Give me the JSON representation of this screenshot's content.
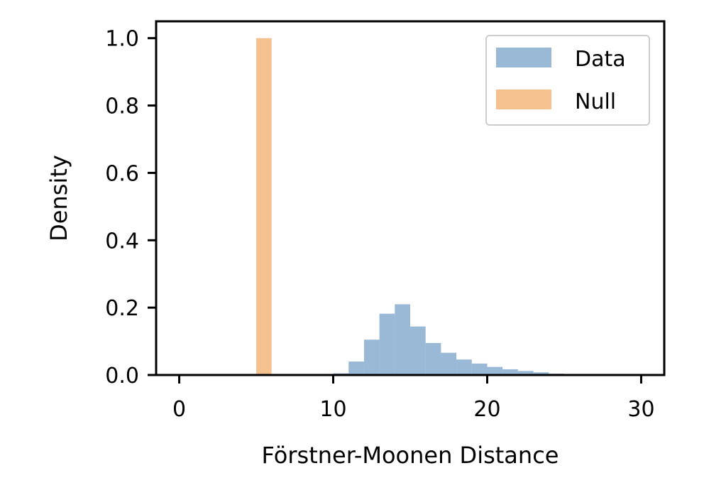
{
  "chart_data": {
    "type": "bar",
    "title": "",
    "xlabel": "Förstner-Moonen Distance",
    "ylabel": "Density",
    "xlim": [
      -1.5,
      31.5
    ],
    "ylim": [
      0,
      1.05
    ],
    "x_ticks": [
      0,
      10,
      20,
      30
    ],
    "y_ticks": [
      0.0,
      0.2,
      0.4,
      0.6,
      0.8,
      1.0
    ],
    "x_tick_labels": [
      "0",
      "10",
      "20",
      "30"
    ],
    "y_tick_labels": [
      "0.0",
      "0.2",
      "0.4",
      "0.6",
      "0.8",
      "1.0"
    ],
    "grid": false,
    "legend_position": "top-right",
    "bin_width": 1,
    "series": [
      {
        "name": "Data",
        "color": "#7fa7cc",
        "opacity": 0.8,
        "bins": [
          {
            "x0": 10,
            "x1": 11,
            "density": 0.005
          },
          {
            "x0": 11,
            "x1": 12,
            "density": 0.04
          },
          {
            "x0": 12,
            "x1": 13,
            "density": 0.105
          },
          {
            "x0": 13,
            "x1": 14,
            "density": 0.182
          },
          {
            "x0": 14,
            "x1": 15,
            "density": 0.21
          },
          {
            "x0": 15,
            "x1": 16,
            "density": 0.144
          },
          {
            "x0": 16,
            "x1": 17,
            "density": 0.095
          },
          {
            "x0": 17,
            "x1": 18,
            "density": 0.066
          },
          {
            "x0": 18,
            "x1": 19,
            "density": 0.046
          },
          {
            "x0": 19,
            "x1": 20,
            "density": 0.034
          },
          {
            "x0": 20,
            "x1": 21,
            "density": 0.024
          },
          {
            "x0": 21,
            "x1": 22,
            "density": 0.017
          },
          {
            "x0": 22,
            "x1": 23,
            "density": 0.012
          },
          {
            "x0": 23,
            "x1": 24,
            "density": 0.008
          },
          {
            "x0": 24,
            "x1": 25,
            "density": 0.004
          },
          {
            "x0": 25,
            "x1": 26,
            "density": 0.002
          },
          {
            "x0": 26,
            "x1": 27,
            "density": 0.001
          },
          {
            "x0": 27,
            "x1": 28,
            "density": 0.001
          }
        ]
      },
      {
        "name": "Null",
        "color": "#f5c18f",
        "opacity": 1,
        "bins": [
          {
            "x0": 5,
            "x1": 6,
            "density": 1.0
          }
        ]
      }
    ]
  }
}
